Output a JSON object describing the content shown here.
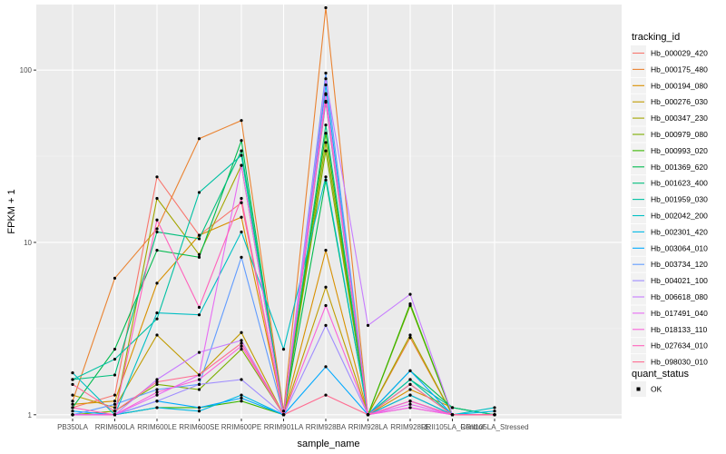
{
  "chart_data": {
    "type": "line",
    "xlabel": "sample_name",
    "ylabel": "FPKM + 1",
    "yscale": "log10",
    "ylim": [
      0.95,
      240
    ],
    "yticks": [
      1,
      10,
      100
    ],
    "grid": true,
    "legend_position": "right",
    "categories": [
      "PB350LA",
      "RRIM600LA",
      "RRIM600LE",
      "RRIM600SE",
      "RRIM600PE",
      "RRIM901LA",
      "RRIM928BA",
      "RRIM928LA",
      "RRIM928LE",
      "RRII105LA_Control",
      "RRII105LA_Stressed"
    ],
    "legend": {
      "title": "tracking_id",
      "items": [
        "Hb_000029_420",
        "Hb_000175_480",
        "Hb_000194_080",
        "Hb_000276_030",
        "Hb_000347_230",
        "Hb_000979_080",
        "Hb_000993_020",
        "Hb_001369_620",
        "Hb_001623_400",
        "Hb_001959_030",
        "Hb_002042_200",
        "Hb_002301_420",
        "Hb_003064_010",
        "Hb_003734_120",
        "Hb_004021_100",
        "Hb_006618_080",
        "Hb_017491_040",
        "Hb_018133_110",
        "Hb_027634_010",
        "Hb_098030_010"
      ]
    },
    "legend2": {
      "title": "quant_status",
      "items": [
        "OK"
      ]
    },
    "series": [
      {
        "name": "Hb_000029_420",
        "color": "#F8766D",
        "values": [
          1.1,
          1.3,
          24,
          11,
          17,
          1.0,
          72,
          null,
          1.2,
          1.0,
          1.0
        ]
      },
      {
        "name": "Hb_000175_480",
        "color": "#EA8331",
        "values": [
          1.2,
          6.2,
          12,
          40,
          51,
          1.05,
          230,
          1.0,
          2.8,
          1.0,
          1.0
        ]
      },
      {
        "name": "Hb_000194_080",
        "color": "#D89000",
        "values": [
          1.15,
          1.2,
          5.8,
          11,
          14,
          1.0,
          9,
          1.0,
          1.4,
          1.1,
          1.0
        ]
      },
      {
        "name": "Hb_000276_030",
        "color": "#C09B00",
        "values": [
          1.3,
          1.1,
          2.9,
          1.7,
          3.0,
          1.0,
          5.5,
          1.0,
          1.3,
          1.0,
          1.0
        ]
      },
      {
        "name": "Hb_000347_230",
        "color": "#A3A500",
        "values": [
          1.0,
          1.0,
          18,
          8.5,
          28,
          1.0,
          38,
          1.0,
          2.9,
          1.0,
          1.0
        ]
      },
      {
        "name": "Hb_000979_080",
        "color": "#7CAE00",
        "values": [
          1.0,
          1.05,
          1.5,
          1.4,
          2.4,
          1.0,
          34,
          1.0,
          4.3,
          1.0,
          1.0
        ]
      },
      {
        "name": "Hb_000993_020",
        "color": "#39B600",
        "values": [
          1.0,
          1.0,
          1.1,
          1.1,
          1.2,
          1.0,
          43,
          1.0,
          4.4,
          1.0,
          1.0
        ]
      },
      {
        "name": "Hb_001369_620",
        "color": "#00BB4E",
        "values": [
          1.1,
          2.4,
          9,
          8.2,
          39,
          1.0,
          23,
          1.0,
          1.8,
          1.1,
          1.0
        ]
      },
      {
        "name": "Hb_001623_400",
        "color": "#00BF7D",
        "values": [
          1.6,
          1.7,
          11.5,
          10.5,
          34,
          1.0,
          48,
          1.0,
          1.6,
          1.1,
          1.0
        ]
      },
      {
        "name": "Hb_001959_030",
        "color": "#00C1A3",
        "values": [
          1.6,
          2.1,
          3.6,
          19.5,
          32,
          1.0,
          65,
          1.0,
          1.6,
          1.0,
          1.0
        ]
      },
      {
        "name": "Hb_002042_200",
        "color": "#00BFC4",
        "values": [
          1.75,
          1.0,
          3.9,
          3.8,
          11.5,
          2.4,
          24,
          1.0,
          1.5,
          1.0,
          1.1
        ]
      },
      {
        "name": "Hb_002301_420",
        "color": "#00B8E5",
        "values": [
          1.0,
          1.0,
          1.1,
          1.05,
          1.3,
          1.0,
          82,
          1.0,
          1.3,
          1.0,
          1.05
        ]
      },
      {
        "name": "Hb_003064_010",
        "color": "#00A9FF",
        "values": [
          1.05,
          1.0,
          1.2,
          1.1,
          1.25,
          1.0,
          1.9,
          1.0,
          1.8,
          1.0,
          1.0
        ]
      },
      {
        "name": "Hb_003734_120",
        "color": "#619CFF",
        "values": [
          1.0,
          1.15,
          1.4,
          1.5,
          8.2,
          1.0,
          96,
          1.0,
          1.2,
          1.0,
          1.0
        ]
      },
      {
        "name": "Hb_004021_100",
        "color": "#9F8CFF",
        "values": [
          1.0,
          1.0,
          1.2,
          1.5,
          1.6,
          1.0,
          3.3,
          1.0,
          1.1,
          1.0,
          1.0
        ]
      },
      {
        "name": "Hb_006618_080",
        "color": "#C77CFF",
        "values": [
          1.0,
          1.0,
          1.6,
          2.3,
          2.7,
          1.0,
          89,
          3.3,
          5.0,
          1.0,
          1.0
        ]
      },
      {
        "name": "Hb_017491_040",
        "color": "#E76BF3",
        "values": [
          1.0,
          1.0,
          1.3,
          1.7,
          28,
          1.0,
          73,
          1.0,
          1.15,
          1.0,
          1.0
        ]
      },
      {
        "name": "Hb_018133_110",
        "color": "#FA62DB",
        "values": [
          1.0,
          1.0,
          1.35,
          1.6,
          2.5,
          1.0,
          4.3,
          1.0,
          1.1,
          1.0,
          1.0
        ]
      },
      {
        "name": "Hb_027634_010",
        "color": "#FF62BC",
        "values": [
          1.1,
          1.0,
          13.5,
          4.2,
          18,
          1.0,
          66,
          1.0,
          1.2,
          1.0,
          1.0
        ]
      },
      {
        "name": "Hb_098030_010",
        "color": "#FF6C91",
        "values": [
          1.5,
          1.05,
          1.55,
          1.7,
          2.6,
          1.0,
          1.3,
          1.0,
          1.5,
          1.0,
          1.0
        ]
      }
    ]
  }
}
